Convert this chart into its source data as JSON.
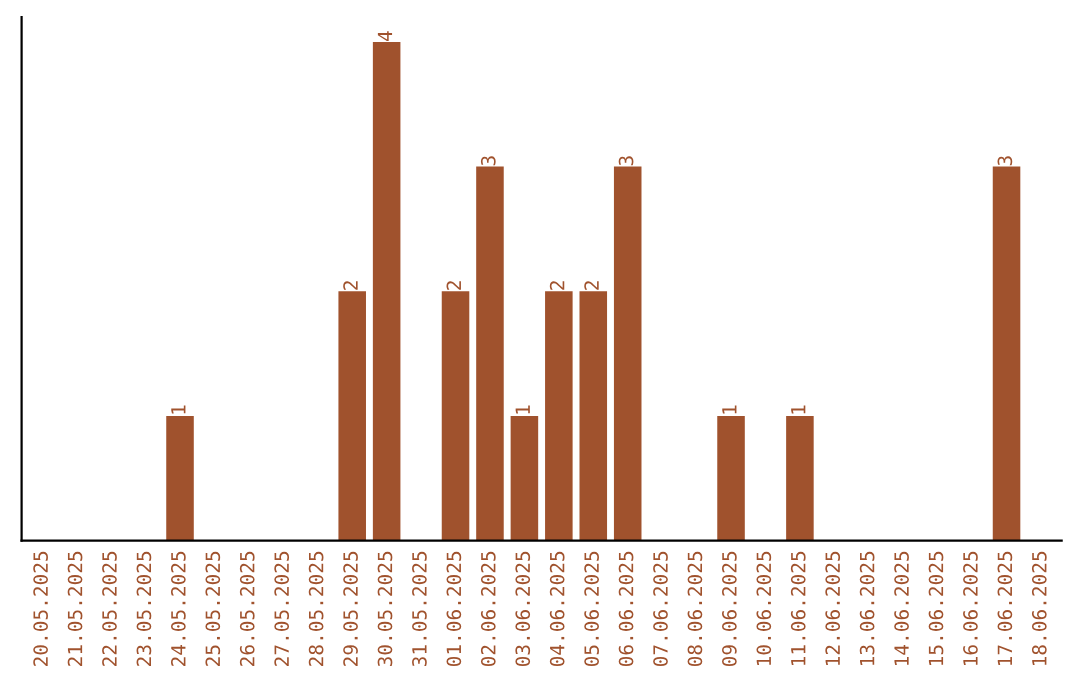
{
  "chart_data": {
    "type": "bar",
    "categories": [
      "20.05.2025",
      "21.05.2025",
      "22.05.2025",
      "23.05.2025",
      "24.05.2025",
      "25.05.2025",
      "26.05.2025",
      "27.05.2025",
      "28.05.2025",
      "29.05.2025",
      "30.05.2025",
      "31.05.2025",
      "01.06.2025",
      "02.06.2025",
      "03.06.2025",
      "04.06.2025",
      "05.06.2025",
      "06.06.2025",
      "07.06.2025",
      "08.06.2025",
      "09.06.2025",
      "10.06.2025",
      "11.06.2025",
      "12.06.2025",
      "13.06.2025",
      "14.06.2025",
      "15.06.2025",
      "16.06.2025",
      "17.06.2025",
      "18.06.2025"
    ],
    "values": [
      0,
      0,
      0,
      0,
      1,
      0,
      0,
      0,
      0,
      2,
      4,
      0,
      2,
      3,
      1,
      2,
      2,
      3,
      0,
      0,
      1,
      0,
      1,
      0,
      0,
      0,
      0,
      0,
      3,
      0
    ],
    "value_labels": [
      null,
      null,
      null,
      null,
      "1",
      null,
      null,
      null,
      null,
      "2",
      "4",
      null,
      "2",
      "3",
      "1",
      "2",
      "2",
      "3",
      null,
      null,
      "1",
      null,
      "1",
      null,
      null,
      null,
      null,
      null,
      "3",
      null
    ],
    "color": "#a0522d",
    "tick_labels": "x",
    "grid": false,
    "legend": false
  }
}
